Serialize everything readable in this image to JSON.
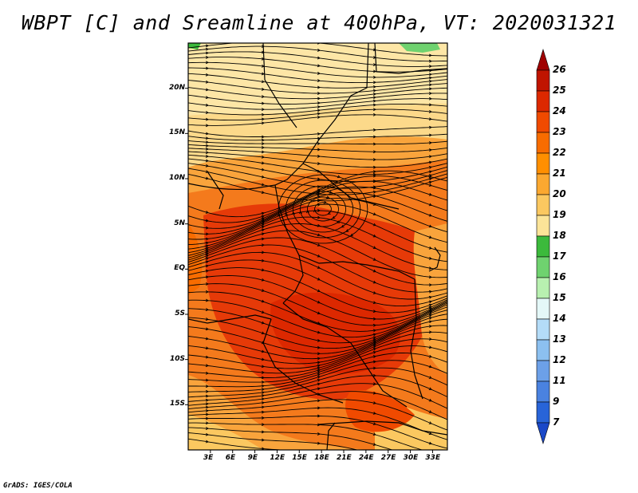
{
  "title": "WBPT [C] and Sreamline at 400hPa, VT: 2020031321",
  "credit": "GrADS: IGES/COLA",
  "map": {
    "lat_labels": [
      "20N",
      "15N",
      "10N",
      "5N",
      "EQ",
      "5S",
      "10S",
      "15S"
    ],
    "lat_values": [
      20,
      15,
      10,
      5,
      0,
      -5,
      -10,
      -15
    ],
    "lon_labels": [
      "3E",
      "6E",
      "9E",
      "12E",
      "15E",
      "18E",
      "21E",
      "24E",
      "27E",
      "30E",
      "33E"
    ],
    "lon_values": [
      3,
      6,
      9,
      12,
      15,
      18,
      21,
      24,
      27,
      30,
      33
    ],
    "lon_range": [
      0,
      35
    ],
    "lat_range": [
      -20,
      25
    ]
  },
  "colorbar": {
    "levels": [
      "26",
      "25",
      "24",
      "23",
      "22",
      "21",
      "20",
      "19",
      "18",
      "17",
      "16",
      "15",
      "14",
      "13",
      "12",
      "11",
      "9",
      "7"
    ],
    "colors": [
      "#a00000",
      "#c01400",
      "#dc2800",
      "#f04a00",
      "#f86c00",
      "#ff8f00",
      "#fba830",
      "#fbc860",
      "#fce498",
      "#3cba3c",
      "#6fd26f",
      "#b8f0b0",
      "#e4f8f8",
      "#b4dcf8",
      "#8cc0f0",
      "#6ca0e8",
      "#4a82e0",
      "#2864d8",
      "#1a48c8"
    ]
  }
}
